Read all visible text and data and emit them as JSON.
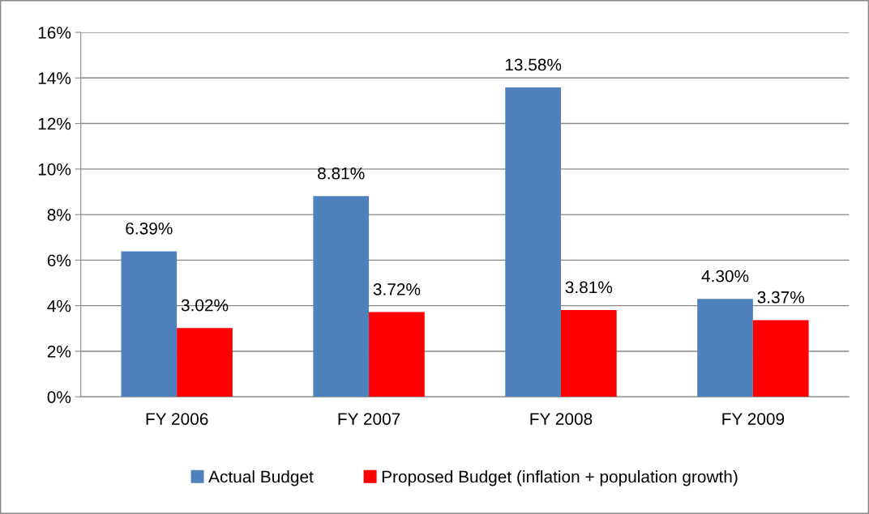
{
  "chart_data": {
    "type": "bar",
    "categories": [
      "FY 2006",
      "FY 2007",
      "FY 2008",
      "FY 2009"
    ],
    "series": [
      {
        "name": "Actual Budget",
        "color": "#4f81bd",
        "values": [
          6.39,
          8.81,
          13.58,
          4.3
        ],
        "value_labels": [
          "6.39%",
          "8.81%",
          "13.58%",
          "4.30%"
        ]
      },
      {
        "name": "Proposed Budget (inflation + population growth)",
        "color": "#ff0000",
        "values": [
          3.02,
          3.72,
          3.81,
          3.37
        ],
        "value_labels": [
          "3.02%",
          "3.72%",
          "3.81%",
          "3.37%"
        ]
      }
    ],
    "ylim": [
      0,
      16
    ],
    "yticks": [
      {
        "value": 0,
        "label": "0%"
      },
      {
        "value": 2,
        "label": "2%"
      },
      {
        "value": 4,
        "label": "4%"
      },
      {
        "value": 6,
        "label": "6%"
      },
      {
        "value": 8,
        "label": "8%"
      },
      {
        "value": 10,
        "label": "10%"
      },
      {
        "value": 12,
        "label": "12%"
      },
      {
        "value": 14,
        "label": "14%"
      },
      {
        "value": 16,
        "label": "16%"
      }
    ],
    "grid": "y",
    "legend": "bottom"
  }
}
